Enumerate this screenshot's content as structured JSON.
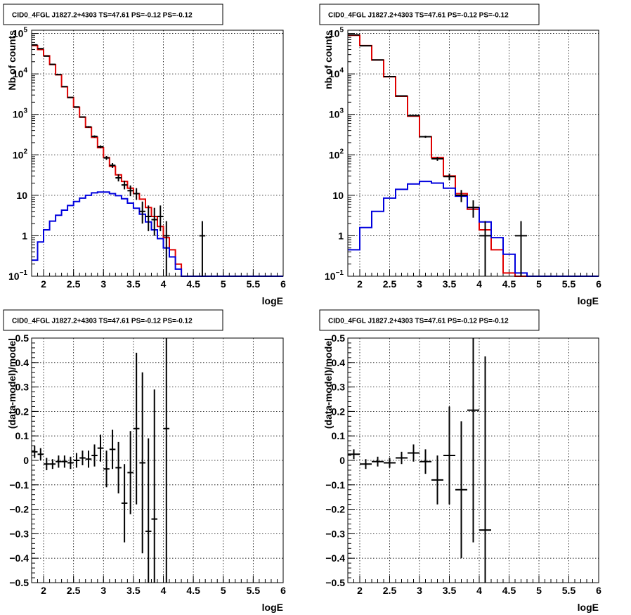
{
  "chart_data": [
    {
      "type": "line",
      "panel": "top-left",
      "title": "CID0_4FGL J1827.2+4303 TS=47.61 PS=-0.12 PS=-0.12",
      "xlabel": "logE",
      "ylabel": "Nb of counts",
      "xlim": [
        1.8,
        6.0
      ],
      "ylim": [
        0.1,
        120000
      ],
      "yscale": "log",
      "grid": true,
      "xticks": [
        "2",
        "2.5",
        "3",
        "3.5",
        "4",
        "4.5",
        "5",
        "5.5",
        "6"
      ],
      "yticks": [
        {
          "value": 0.1,
          "label": "10",
          "exp": "−1"
        },
        {
          "value": 1,
          "label": "1",
          "exp": ""
        },
        {
          "value": 10,
          "label": "10",
          "exp": ""
        },
        {
          "value": 100,
          "label": "10",
          "exp": "2"
        },
        {
          "value": 1000,
          "label": "10",
          "exp": "3"
        },
        {
          "value": 10000,
          "label": "10",
          "exp": "4"
        },
        {
          "value": 100000,
          "label": "10",
          "exp": "5"
        }
      ],
      "binwidth": 0.1,
      "series": [
        {
          "color": "#e00000",
          "style": "step",
          "x": [
            1.85,
            1.95,
            2.05,
            2.15,
            2.25,
            2.35,
            2.45,
            2.55,
            2.65,
            2.75,
            2.85,
            2.95,
            3.05,
            3.15,
            3.25,
            3.35,
            3.45,
            3.55,
            3.65,
            3.75,
            3.85,
            3.95,
            4.05,
            4.15,
            4.25,
            4.35,
            4.45,
            4.55,
            4.65,
            4.75,
            4.85,
            4.95,
            5.05,
            5.15,
            5.25,
            5.35,
            5.45,
            5.55,
            5.65,
            5.75,
            5.85,
            5.95
          ],
          "y": [
            50000,
            40000,
            28000,
            17000,
            9500,
            4800,
            2600,
            1500,
            850,
            480,
            270,
            150,
            85,
            52,
            32,
            22,
            15,
            11,
            8,
            5,
            3,
            1.7,
            0.9,
            0.45,
            0.2,
            0.1,
            0.1,
            0.1,
            0.1,
            0.1,
            0.1,
            0.1,
            0.1,
            0.1,
            0.1,
            0.1,
            0.1,
            0.1,
            0.1,
            0.1,
            0.1,
            0.1
          ]
        },
        {
          "color": "#0000dd",
          "style": "step",
          "x": [
            1.85,
            1.95,
            2.05,
            2.15,
            2.25,
            2.35,
            2.45,
            2.55,
            2.65,
            2.75,
            2.85,
            2.95,
            3.05,
            3.15,
            3.25,
            3.35,
            3.45,
            3.55,
            3.65,
            3.75,
            3.85,
            3.95,
            4.05,
            4.15,
            4.25,
            4.35,
            4.45,
            4.55,
            4.65,
            4.75,
            4.85,
            4.95,
            5.05,
            5.15,
            5.25,
            5.35,
            5.45,
            5.55,
            5.65,
            5.75,
            5.85,
            5.95
          ],
          "y": [
            0.25,
            0.7,
            1.4,
            2.3,
            3.2,
            4.3,
            5.6,
            7,
            8.5,
            10,
            11.5,
            12,
            12,
            11,
            9.8,
            8.2,
            6.4,
            4.8,
            3.4,
            2.2,
            1.4,
            0.85,
            0.5,
            0.3,
            0.15,
            0.1,
            0.1,
            0.1,
            0.1,
            0.1,
            0.1,
            0.1,
            0.1,
            0.1,
            0.1,
            0.1,
            0.1,
            0.1,
            0.1,
            0.1,
            0.1,
            0.1
          ]
        },
        {
          "color": "#000000",
          "style": "errorbar",
          "x": [
            1.85,
            1.95,
            2.05,
            2.15,
            2.25,
            2.35,
            2.45,
            2.55,
            2.65,
            2.75,
            2.85,
            2.95,
            3.05,
            3.15,
            3.25,
            3.35,
            3.45,
            3.55,
            3.65,
            3.75,
            3.85,
            3.95,
            4.05,
            4.65
          ],
          "y": [
            52000,
            42000,
            27500,
            17200,
            9600,
            4850,
            2620,
            1520,
            860,
            490,
            285,
            158,
            84,
            55,
            27,
            18,
            13,
            11,
            4,
            3,
            2.5,
            3,
            1,
            1
          ],
          "err_low": [
            220,
            200,
            160,
            130,
            95,
            70,
            50,
            40,
            29,
            22,
            17,
            12.5,
            9,
            7.5,
            5,
            4,
            3.5,
            3.3,
            2,
            1.7,
            1.5,
            1.7,
            1,
            1
          ],
          "err_high": [
            230,
            205,
            170,
            135,
            100,
            72,
            52,
            40,
            30,
            23,
            17,
            12.5,
            9.5,
            7.5,
            6,
            5,
            4.5,
            4,
            3,
            2.6,
            2.4,
            2.6,
            1.3,
            1.3
          ]
        }
      ]
    },
    {
      "type": "line",
      "panel": "top-right",
      "title": "CID0_4FGL J1827.2+4303 TS=47.61 PS=-0.12 PS=-0.12",
      "xlabel": "logE",
      "ylabel": "nb of counts",
      "xlim": [
        1.8,
        6.0
      ],
      "ylim": [
        0.1,
        120000
      ],
      "yscale": "log",
      "grid": true,
      "xticks": [
        "2",
        "2.5",
        "3",
        "3.5",
        "4",
        "4.5",
        "5",
        "5.5",
        "6"
      ],
      "yticks": [
        {
          "value": 0.1,
          "label": "10",
          "exp": "−1"
        },
        {
          "value": 1,
          "label": "1",
          "exp": ""
        },
        {
          "value": 10,
          "label": "10",
          "exp": ""
        },
        {
          "value": 100,
          "label": "10",
          "exp": "2"
        },
        {
          "value": 1000,
          "label": "10",
          "exp": "3"
        },
        {
          "value": 10000,
          "label": "10",
          "exp": "4"
        },
        {
          "value": 100000,
          "label": "10",
          "exp": "5"
        }
      ],
      "binwidth": 0.2,
      "series": [
        {
          "color": "#e00000",
          "style": "step",
          "x": [
            1.9,
            2.1,
            2.3,
            2.5,
            2.7,
            2.9,
            3.1,
            3.3,
            3.5,
            3.7,
            3.9,
            4.1,
            4.3,
            4.5,
            4.7,
            4.9,
            5.1,
            5.3,
            5.5,
            5.7,
            5.9
          ],
          "y": [
            90000,
            50000,
            22000,
            8500,
            2800,
            900,
            280,
            85,
            30,
            11,
            4.5,
            1.4,
            0.45,
            0.12,
            0.1,
            0.1,
            0.1,
            0.1,
            0.1,
            0.1,
            0.1
          ]
        },
        {
          "color": "#0000dd",
          "style": "step",
          "x": [
            1.9,
            2.1,
            2.3,
            2.5,
            2.7,
            2.9,
            3.1,
            3.3,
            3.5,
            3.7,
            3.9,
            4.1,
            4.3,
            4.5,
            4.7,
            4.9,
            5.1,
            5.3,
            5.5,
            5.7,
            5.9
          ],
          "y": [
            0.45,
            1.6,
            4,
            8.5,
            14,
            19,
            22,
            20,
            15,
            9.5,
            5,
            2.2,
            0.9,
            0.35,
            0.12,
            0.1,
            0.1,
            0.1,
            0.1,
            0.1,
            0.1
          ]
        },
        {
          "color": "#000000",
          "style": "errorbar",
          "x": [
            1.9,
            2.1,
            2.3,
            2.5,
            2.7,
            2.9,
            3.1,
            3.3,
            3.5,
            3.7,
            3.9,
            4.1,
            4.7
          ],
          "y": [
            92000,
            49500,
            22200,
            8550,
            2850,
            930,
            280,
            80,
            29,
            10,
            5,
            1,
            1
          ],
          "err_low": [
            300,
            220,
            150,
            92,
            53,
            30,
            16.7,
            9,
            5.4,
            3.2,
            2.2,
            1,
            1
          ],
          "err_high": [
            300,
            225,
            150,
            93,
            54,
            31,
            16.8,
            9,
            5.5,
            3.5,
            2.5,
            1.3,
            1.3
          ]
        }
      ]
    },
    {
      "type": "scatter",
      "panel": "bottom-left",
      "title": "CID0_4FGL J1827.2+4303 TS=47.61 PS=-0.12 PS=-0.12",
      "xlabel": "logE",
      "ylabel": "(data-model)/model",
      "xlim": [
        1.8,
        6.0
      ],
      "ylim": [
        -0.5,
        0.5
      ],
      "grid": true,
      "xticks": [
        "2",
        "2.5",
        "3",
        "3.5",
        "4",
        "4.5",
        "5",
        "5.5",
        "6"
      ],
      "yticks": [
        "−0.5",
        "−0.4",
        "−0.3",
        "−0.2",
        "−0.1",
        "0",
        "0.1",
        "0.2",
        "0.3",
        "0.4",
        "0.5"
      ],
      "binwidth": 0.1,
      "series": [
        {
          "color": "#000000",
          "style": "errorbar",
          "x": [
            1.85,
            1.95,
            2.05,
            2.15,
            2.25,
            2.35,
            2.45,
            2.55,
            2.65,
            2.75,
            2.85,
            2.95,
            3.05,
            3.15,
            3.25,
            3.35,
            3.45,
            3.55,
            3.65,
            3.75,
            3.85,
            4.05
          ],
          "y": [
            0.035,
            0.025,
            -0.015,
            -0.015,
            -0.005,
            -0.005,
            -0.01,
            0.0,
            0.01,
            0.005,
            0.02,
            0.05,
            -0.035,
            0.045,
            -0.03,
            -0.175,
            -0.05,
            0.13,
            -0.01,
            -0.29,
            -0.24,
            0.13
          ],
          "err": [
            0.025,
            0.025,
            0.025,
            0.02,
            0.025,
            0.025,
            0.025,
            0.03,
            0.03,
            0.035,
            0.045,
            0.055,
            0.075,
            0.08,
            0.105,
            0.16,
            0.17,
            0.31,
            0.37,
            0.38,
            0.53,
            0.65
          ]
        }
      ]
    },
    {
      "type": "scatter",
      "panel": "bottom-right",
      "title": "CID0_4FGL J1827.2+4303 TS=47.61 PS=-0.12 PS=-0.12",
      "xlabel": "logE",
      "ylabel": "(data-model)/model",
      "xlim": [
        1.8,
        6.0
      ],
      "ylim": [
        -0.5,
        0.5
      ],
      "grid": true,
      "xticks": [
        "2",
        "2.5",
        "3",
        "3.5",
        "4",
        "4.5",
        "5",
        "5.5",
        "6"
      ],
      "yticks": [
        "−0.5",
        "−0.4",
        "−0.3",
        "−0.2",
        "−0.1",
        "0",
        "0.1",
        "0.2",
        "0.3",
        "0.4",
        "0.5"
      ],
      "binwidth": 0.2,
      "series": [
        {
          "color": "#000000",
          "style": "errorbar",
          "x": [
            1.9,
            2.1,
            2.3,
            2.5,
            2.7,
            2.9,
            3.1,
            3.3,
            3.5,
            3.7,
            3.9,
            4.1
          ],
          "y": [
            0.025,
            -0.015,
            -0.005,
            -0.01,
            0.01,
            0.03,
            -0.005,
            -0.08,
            0.02,
            -0.12,
            0.205,
            -0.285
          ],
          "err": [
            0.02,
            0.02,
            0.02,
            0.02,
            0.025,
            0.035,
            0.05,
            0.1,
            0.2,
            0.28,
            0.54,
            0.71
          ]
        }
      ]
    }
  ]
}
